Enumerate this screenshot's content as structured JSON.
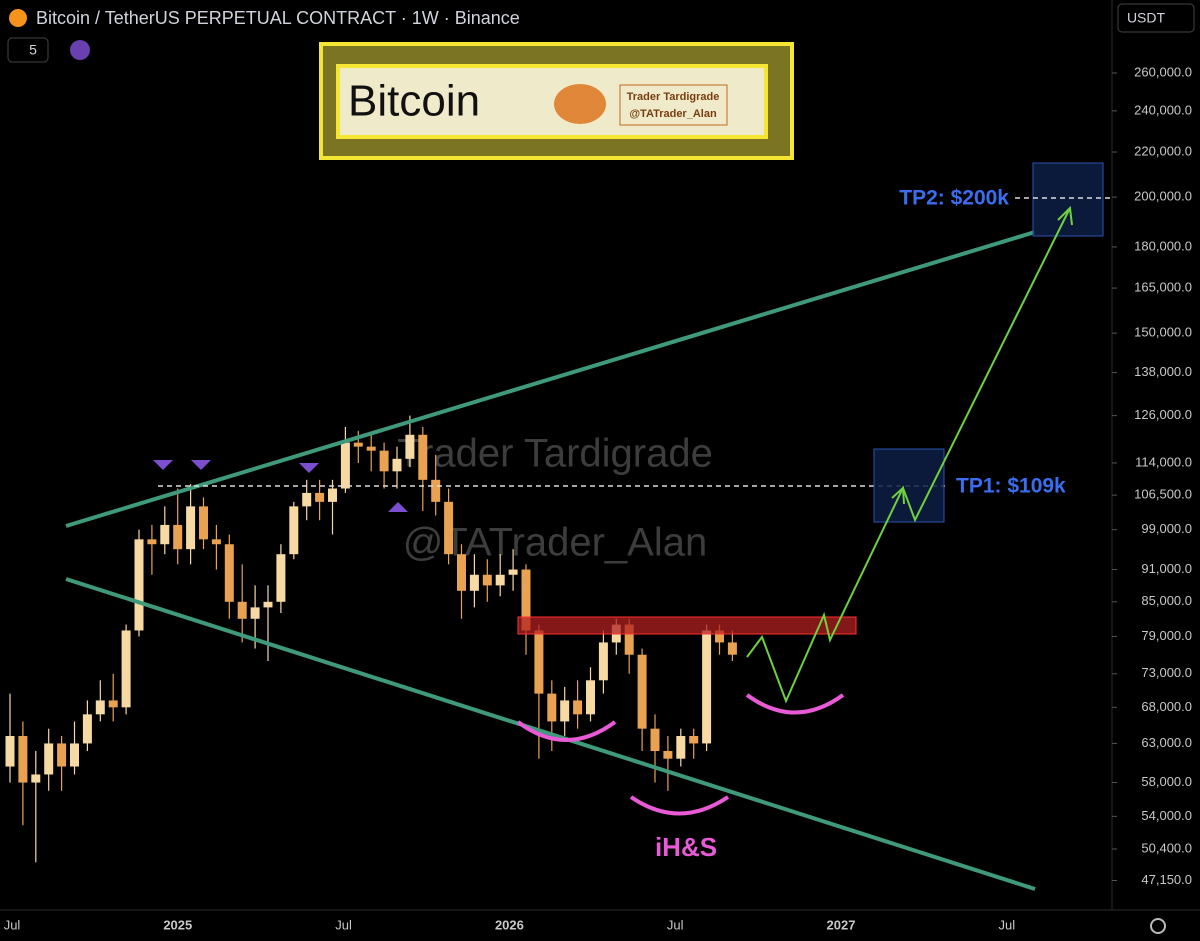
{
  "header": {
    "title": "Bitcoin / TetherUS PERPETUAL CONTRACT · 1W · Binance",
    "interval_count": "5",
    "currency": "USDT"
  },
  "banner": {
    "title": "Bitcoin",
    "author": "Trader Tardigrade",
    "handle": "@TATrader_Alan"
  },
  "watermark": {
    "author": "Trader Tardigrade",
    "handle": "@TATrader_Alan"
  },
  "chart_data": {
    "type": "candlestick",
    "log": true,
    "ylim": [
      44300,
      303400
    ],
    "yticks": [
      {
        "value": 260000,
        "label": "260,000.0"
      },
      {
        "value": 240000,
        "label": "240,000.0"
      },
      {
        "value": 220000,
        "label": "220,000.0"
      },
      {
        "value": 200000,
        "label": "200,000.0"
      },
      {
        "value": 180000,
        "label": "180,000.0"
      },
      {
        "value": 165000,
        "label": "165,000.0"
      },
      {
        "value": 150000,
        "label": "150,000.0"
      },
      {
        "value": 138000,
        "label": "138,000.0"
      },
      {
        "value": 126000,
        "label": "126,000.0"
      },
      {
        "value": 114000,
        "label": "114,000.0"
      },
      {
        "value": 106500,
        "label": "106,500.0"
      },
      {
        "value": 99000,
        "label": "99,000.0"
      },
      {
        "value": 91000,
        "label": "91,000.0"
      },
      {
        "value": 85000,
        "label": "85,000.0"
      },
      {
        "value": 79000,
        "label": "79,000.0"
      },
      {
        "value": 73000,
        "label": "73,000.0"
      },
      {
        "value": 68000,
        "label": "68,000.0"
      },
      {
        "value": 63000,
        "label": "63,000.0"
      },
      {
        "value": 58000,
        "label": "58,000.0"
      },
      {
        "value": 54000,
        "label": "54,000.0"
      },
      {
        "value": 50400,
        "label": "50,400.0"
      },
      {
        "value": 47150,
        "label": "47,150.0"
      }
    ],
    "xticks": [
      "Jul",
      "2025",
      "Jul",
      "2026",
      "Jul",
      "2027",
      "Jul"
    ],
    "up_color": "#f7d9a3",
    "down_color": "#e9a252",
    "open": [
      60000,
      64000,
      58000,
      59000,
      63000,
      60000,
      63000,
      67000,
      69000,
      68000,
      80000,
      97000,
      96000,
      100000,
      95000,
      104000,
      97000,
      96000,
      85000,
      82000,
      84000,
      85000,
      94000,
      104000,
      107000,
      105000,
      108000,
      119000,
      118000,
      117000,
      112000,
      115000,
      121000,
      110000,
      105000,
      94000,
      87000,
      90000,
      88000,
      90000,
      91000,
      80000,
      70000,
      66000,
      69000,
      67000,
      72000,
      78000,
      81000,
      76000,
      65000,
      62000,
      61000,
      64000,
      63000,
      80000,
      78000
    ],
    "high": [
      70000,
      66000,
      62000,
      65000,
      64000,
      66000,
      69000,
      72000,
      73000,
      81000,
      99000,
      100000,
      104000,
      108000,
      109000,
      106000,
      100000,
      98000,
      92000,
      88000,
      88000,
      96000,
      105000,
      110000,
      110000,
      110000,
      123000,
      122000,
      121000,
      119000,
      118000,
      126000,
      123000,
      116000,
      108000,
      96000,
      94000,
      93000,
      94000,
      95000,
      92000,
      81000,
      72000,
      71000,
      72000,
      74000,
      80000,
      82000,
      82000,
      77000,
      67000,
      64000,
      65000,
      65000,
      81000,
      81000,
      80000
    ],
    "low": [
      58000,
      53000,
      49000,
      57000,
      57000,
      59000,
      62000,
      66000,
      66000,
      67000,
      79000,
      90000,
      94000,
      92000,
      92000,
      95000,
      91000,
      82000,
      78000,
      77000,
      75000,
      83000,
      93000,
      101000,
      101000,
      98000,
      107000,
      114000,
      112000,
      108000,
      108000,
      113000,
      103000,
      102000,
      92000,
      82000,
      84000,
      85000,
      86000,
      87000,
      76000,
      61000,
      62000,
      64000,
      65000,
      66000,
      70000,
      76000,
      73000,
      62000,
      58000,
      57000,
      60000,
      61000,
      62000,
      76000,
      75000
    ],
    "close": [
      64000,
      58000,
      59000,
      63000,
      60000,
      63000,
      67000,
      69000,
      68000,
      80000,
      97000,
      96000,
      100000,
      95000,
      104000,
      97000,
      96000,
      85000,
      82000,
      84000,
      85000,
      94000,
      104000,
      107000,
      105000,
      108000,
      119000,
      118000,
      117000,
      112000,
      115000,
      121000,
      110000,
      105000,
      94000,
      87000,
      90000,
      88000,
      90000,
      91000,
      80000,
      70000,
      66000,
      69000,
      67000,
      72000,
      78000,
      81000,
      76000,
      65000,
      62000,
      61000,
      64000,
      63000,
      80000,
      78000,
      76000
    ],
    "annotations": {
      "tp2": "TP2: $200k",
      "tp1": "TP1: $109k",
      "pattern": "iH&S"
    }
  }
}
